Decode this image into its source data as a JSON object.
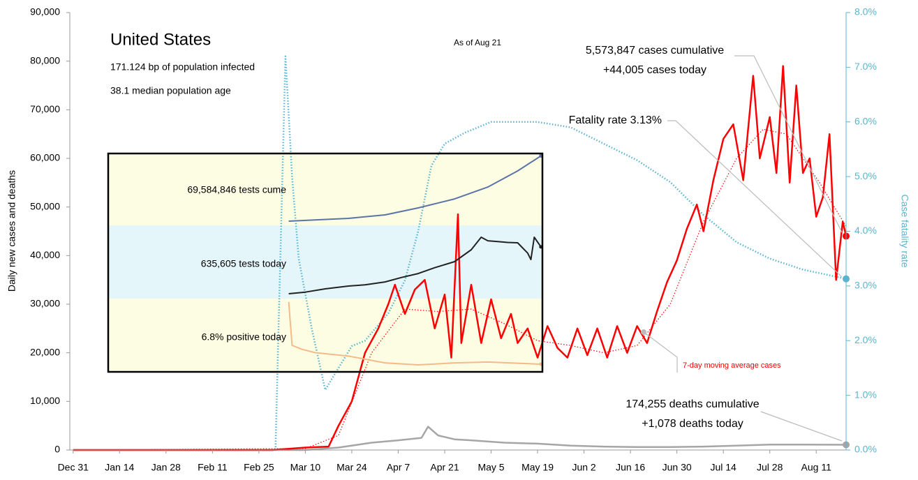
{
  "chart_data": {
    "type": "line",
    "title": "United States",
    "subtitle": "As of Aug 21",
    "notes": [
      "171.124 bp of population infected",
      "38.1 median population age"
    ],
    "y_label": "Daily new cases and deaths",
    "y2_label": "Case fatality rate",
    "annotations": {
      "cases": [
        "5,573,847 cases cumulative",
        "+44,005 cases today"
      ],
      "fatality": "Fatality rate 3.13%",
      "deaths": [
        "174,255 deaths cumulative",
        "+1,078 deaths today"
      ],
      "average": "7-day moving average cases"
    },
    "xlim": [
      -1,
      233
    ],
    "xticks": [
      {
        "value": 0,
        "label": "Dec 31"
      },
      {
        "value": 14,
        "label": "Jan 14"
      },
      {
        "value": 28,
        "label": "Jan 28"
      },
      {
        "value": 42,
        "label": "Feb 11"
      },
      {
        "value": 56,
        "label": "Feb 25"
      },
      {
        "value": 70,
        "label": "Mar 10"
      },
      {
        "value": 84,
        "label": "Mar 24"
      },
      {
        "value": 98,
        "label": "Apr 7"
      },
      {
        "value": 112,
        "label": "Apr 21"
      },
      {
        "value": 126,
        "label": "May 5"
      },
      {
        "value": 140,
        "label": "May 19"
      },
      {
        "value": 154,
        "label": "Jun 2"
      },
      {
        "value": 168,
        "label": "Jun 16"
      },
      {
        "value": 182,
        "label": "Jun 30"
      },
      {
        "value": 196,
        "label": "Jul 14"
      },
      {
        "value": 210,
        "label": "Jul 28"
      },
      {
        "value": 224,
        "label": "Aug 11"
      }
    ],
    "ylim": [
      0,
      90000
    ],
    "yticks": [
      0,
      {
        "value": 10000,
        "label": "10,000"
      },
      {
        "value": 20000,
        "label": "20,000"
      },
      {
        "value": 30000,
        "label": "30,000"
      },
      {
        "value": 40000,
        "label": "40,000"
      },
      {
        "value": 50000,
        "label": "50,000"
      },
      {
        "value": 60000,
        "label": "60,000"
      },
      {
        "value": 70000,
        "label": "70,000"
      },
      {
        "value": 80000,
        "label": "80,000"
      },
      {
        "value": 90000,
        "label": "90,000"
      }
    ],
    "y2lim": [
      0,
      8
    ],
    "y2ticks": [
      {
        "value": 0,
        "label": "0.0%"
      },
      {
        "value": 1,
        "label": "1.0%"
      },
      {
        "value": 2,
        "label": "2.0%"
      },
      {
        "value": 3,
        "label": "3.0%"
      },
      {
        "value": 4,
        "label": "4.0%"
      },
      {
        "value": 5,
        "label": "5.0%"
      },
      {
        "value": 6,
        "label": "6.0%"
      },
      {
        "value": 7,
        "label": "7.0%"
      },
      {
        "value": 8,
        "label": "8.0%"
      }
    ],
    "y2color": "#5bb4cf",
    "series": [
      {
        "color": "#a6a6a6",
        "style": "solid",
        "width": 2.5,
        "x": [
          0,
          70,
          80,
          90,
          98,
          105,
          107,
          110,
          115,
          120,
          130,
          140,
          150,
          160,
          170,
          180,
          190,
          200,
          210,
          220,
          233
        ],
        "values": [
          0,
          0,
          500,
          1500,
          2000,
          2500,
          4800,
          3000,
          2200,
          2000,
          1500,
          1300,
          900,
          700,
          600,
          600,
          700,
          900,
          1100,
          1100,
          1078
        ]
      },
      {
        "color": "#5bb4cf",
        "style": "dotted",
        "width": 2.5,
        "axis": "y2",
        "x": [
          61,
          64,
          66,
          68,
          72,
          76,
          80,
          84,
          88,
          95,
          100,
          104,
          108,
          112,
          118,
          126,
          140,
          150,
          160,
          170,
          180,
          190,
          200,
          210,
          220,
          233
        ],
        "values": [
          0,
          7.2,
          5,
          3.5,
          2.2,
          1.1,
          1.5,
          1.9,
          2.0,
          2.5,
          3.1,
          4.0,
          5.2,
          5.6,
          5.8,
          6.0,
          6.0,
          5.9,
          5.6,
          5.3,
          4.9,
          4.3,
          3.8,
          3.5,
          3.3,
          3.13
        ]
      },
      {
        "color": "#ff0000",
        "style": "dotted",
        "width": 1.2,
        "x": [
          0,
          70,
          80,
          90,
          100,
          110,
          120,
          130,
          140,
          150,
          160,
          170,
          180,
          190,
          200,
          208,
          215,
          225,
          233
        ],
        "values": [
          0,
          300,
          3000,
          20000,
          29000,
          28500,
          29000,
          26000,
          22500,
          21500,
          20000,
          21500,
          30000,
          47000,
          60000,
          66000,
          65000,
          55000,
          46000
        ]
      },
      {
        "color": "#ff0000",
        "style": "solid",
        "width": 2.5,
        "x": [
          0,
          60,
          70,
          77,
          80,
          84,
          88,
          92,
          95,
          97,
          100,
          103,
          106,
          109,
          112,
          114,
          116,
          117,
          120,
          123,
          126,
          129,
          132,
          134,
          137,
          140,
          143,
          146,
          149,
          152,
          155,
          158,
          161,
          164,
          167,
          170,
          173,
          176,
          179,
          182,
          185,
          188,
          190,
          193,
          196,
          199,
          202,
          205,
          207,
          210,
          212,
          214,
          216,
          218,
          220,
          222,
          224,
          226,
          228,
          230,
          232,
          233
        ],
        "values": [
          0,
          0,
          500,
          700,
          5000,
          10000,
          20000,
          25000,
          30000,
          34000,
          28000,
          33000,
          35000,
          25000,
          32000,
          19000,
          48500,
          22000,
          34000,
          22000,
          31000,
          23000,
          28000,
          22000,
          25000,
          19000,
          25500,
          21000,
          19000,
          25000,
          19500,
          25000,
          19000,
          25500,
          20000,
          25500,
          22000,
          28500,
          34500,
          39000,
          45500,
          50500,
          45000,
          55500,
          64000,
          67000,
          55500,
          77000,
          60000,
          68500,
          57000,
          79000,
          55000,
          75000,
          57000,
          60000,
          48000,
          52000,
          65000,
          35000,
          47000,
          44005
        ]
      }
    ],
    "inset": {
      "labels": [
        "69,584,846 tests cume",
        "635,605 tests today",
        "6.8% positive today"
      ],
      "series": [
        {
          "color": "#5a74a8",
          "ylim": [
            0,
            72000000
          ],
          "x": [
            65,
            83,
            94,
            104,
            115,
            125,
            134,
            141
          ],
          "values": [
            4200000,
            7000000,
            10500000,
            17500000,
            26500000,
            38400000,
            54500000,
            69584846
          ]
        },
        {
          "color": "#222222",
          "ylim": [
            0,
            900000
          ],
          "x": [
            65,
            70,
            76,
            83,
            88,
            94,
            99,
            104,
            109,
            115,
            120,
            123,
            125,
            128,
            131,
            134,
            137,
            138,
            139,
            141
          ],
          "values": [
            60000,
            80000,
            120000,
            154000,
            170000,
            205000,
            260000,
            308000,
            380000,
            454000,
            600000,
            754000,
            711000,
            700000,
            690000,
            686000,
            560000,
            480000,
            754000,
            635605
          ]
        },
        {
          "color": "#f5b98a",
          "ylim": [
            0,
            65
          ],
          "x": [
            65,
            66,
            69,
            73,
            83,
            94,
            104,
            115,
            125,
            141
          ],
          "values": [
            62,
            23.5,
            20,
            17,
            14,
            8,
            6.2,
            8,
            8.7,
            6.8
          ]
        }
      ]
    }
  }
}
